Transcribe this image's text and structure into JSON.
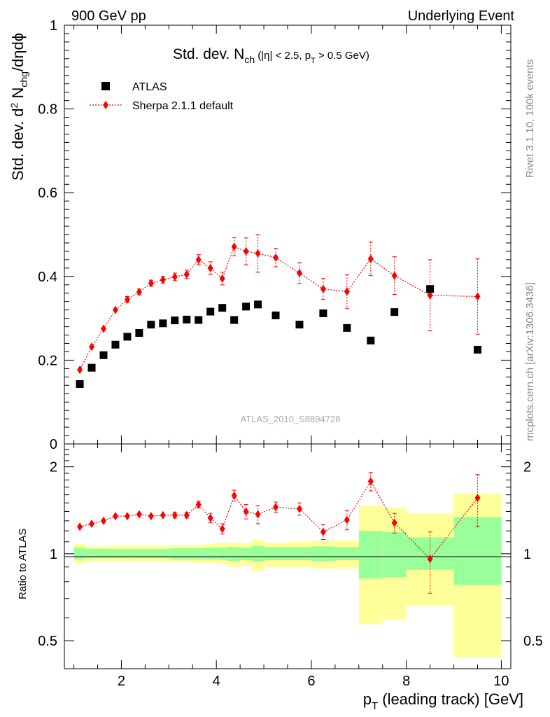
{
  "header": {
    "left_title": "900 GeV pp",
    "right_title": "Underlying Event"
  },
  "side_labels": {
    "rivet": "Rivet 3.1.10,  100k events",
    "mcplots": "mcplots.cern.ch [arXiv:1306.3436]"
  },
  "watermark": "ATLAS_2010_S8894728",
  "plot_title": {
    "main": "Std. dev. N",
    "main_sub": "ch",
    "cut_a": " (|η| < 2.5, p",
    "cut_sub": "T",
    "cut_b": " > 0.5 GeV)"
  },
  "ylabel": {
    "a": "Std. dev. d",
    "sup": "2",
    "b": " N",
    "sub": "chg",
    "c": "/dηdϕ"
  },
  "ratio_ylabel": "Ratio to ATLAS",
  "xlabel": {
    "a": "p",
    "sub": "T",
    "b": " (leading track) [GeV]"
  },
  "legend": {
    "atlas": "ATLAS",
    "sherpa": "Sherpa 2.1.1 default"
  },
  "colors": {
    "atlas": "#000000",
    "sherpa": "#ff0000",
    "band_inner": "#99ff99",
    "band_outer": "#ffff99"
  },
  "chart_data": [
    {
      "type": "scatter",
      "name": "main",
      "xlim": [
        0.8,
        10.2
      ],
      "ylim": [
        0,
        1.0
      ],
      "x_ticks": [
        2,
        4,
        6,
        8,
        10
      ],
      "y_ticks": [
        0.2,
        0.4,
        0.6,
        0.8,
        1
      ],
      "y_tick_labels": [
        "0.2",
        "0.4",
        "0.6",
        "0.8",
        "1"
      ],
      "series": [
        {
          "name": "ATLAS",
          "marker": "square",
          "x": [
            1.125,
            1.375,
            1.625,
            1.875,
            2.125,
            2.375,
            2.625,
            2.875,
            3.125,
            3.375,
            3.625,
            3.875,
            4.125,
            4.375,
            4.625,
            4.875,
            5.25,
            5.75,
            6.25,
            6.75,
            7.25,
            7.75,
            8.5,
            9.5
          ],
          "y": [
            0.143,
            0.182,
            0.212,
            0.237,
            0.256,
            0.265,
            0.285,
            0.288,
            0.295,
            0.297,
            0.296,
            0.316,
            0.325,
            0.296,
            0.328,
            0.333,
            0.307,
            0.285,
            0.312,
            0.277,
            0.247,
            0.315,
            0.37,
            0.225
          ]
        },
        {
          "name": "Sherpa 2.1.1 default",
          "marker": "diamond",
          "x": [
            1.125,
            1.375,
            1.625,
            1.875,
            2.125,
            2.375,
            2.625,
            2.875,
            3.125,
            3.375,
            3.625,
            3.875,
            4.125,
            4.375,
            4.625,
            4.875,
            5.25,
            5.75,
            6.25,
            6.75,
            7.25,
            7.75,
            8.5,
            9.5
          ],
          "y": [
            0.177,
            0.232,
            0.275,
            0.32,
            0.345,
            0.363,
            0.384,
            0.392,
            0.399,
            0.405,
            0.44,
            0.42,
            0.395,
            0.471,
            0.46,
            0.455,
            0.445,
            0.408,
            0.37,
            0.364,
            0.442,
            0.402,
            0.355,
            0.352
          ],
          "err": [
            0.005,
            0.005,
            0.006,
            0.006,
            0.007,
            0.007,
            0.007,
            0.008,
            0.009,
            0.01,
            0.012,
            0.015,
            0.015,
            0.022,
            0.032,
            0.045,
            0.022,
            0.025,
            0.025,
            0.04,
            0.04,
            0.045,
            0.085,
            0.09
          ]
        }
      ]
    },
    {
      "type": "scatter",
      "name": "ratio",
      "xlim": [
        0.8,
        10.2
      ],
      "ylim": [
        0.4,
        2.4
      ],
      "x_ticks": [
        2,
        4,
        6,
        8,
        10
      ],
      "x_tick_labels": [
        "2",
        "4",
        "6",
        "8",
        "10"
      ],
      "y_ticks": [
        0.5,
        1,
        2
      ],
      "y_tick_labels": [
        "0.5",
        "1",
        "2"
      ],
      "bins": [
        [
          1.0,
          1.25
        ],
        [
          1.25,
          1.5
        ],
        [
          1.5,
          1.75
        ],
        [
          1.75,
          2.0
        ],
        [
          2.0,
          2.25
        ],
        [
          2.25,
          2.5
        ],
        [
          2.5,
          2.75
        ],
        [
          2.75,
          3.0
        ],
        [
          3.0,
          3.25
        ],
        [
          3.25,
          3.5
        ],
        [
          3.5,
          3.75
        ],
        [
          3.75,
          4.0
        ],
        [
          4.0,
          4.25
        ],
        [
          4.25,
          4.5
        ],
        [
          4.5,
          4.75
        ],
        [
          4.75,
          5.0
        ],
        [
          5.0,
          5.5
        ],
        [
          5.5,
          6.0
        ],
        [
          6.0,
          6.5
        ],
        [
          6.5,
          7.0
        ],
        [
          7.0,
          7.5
        ],
        [
          7.5,
          8.0
        ],
        [
          8.0,
          9.0
        ],
        [
          9.0,
          10.0
        ]
      ],
      "band_inner": [
        [
          0.96,
          1.05
        ],
        [
          0.965,
          1.04
        ],
        [
          0.965,
          1.04
        ],
        [
          0.965,
          1.04
        ],
        [
          0.965,
          1.04
        ],
        [
          0.965,
          1.04
        ],
        [
          0.965,
          1.04
        ],
        [
          0.965,
          1.04
        ],
        [
          0.96,
          1.045
        ],
        [
          0.96,
          1.045
        ],
        [
          0.96,
          1.045
        ],
        [
          0.955,
          1.05
        ],
        [
          0.955,
          1.05
        ],
        [
          0.945,
          1.055
        ],
        [
          0.95,
          1.05
        ],
        [
          0.94,
          1.065
        ],
        [
          0.95,
          1.055
        ],
        [
          0.95,
          1.055
        ],
        [
          0.945,
          1.06
        ],
        [
          0.95,
          1.055
        ],
        [
          0.82,
          1.2
        ],
        [
          0.83,
          1.19
        ],
        [
          0.88,
          1.14
        ],
        [
          0.78,
          1.34
        ]
      ],
      "band_outer": [
        [
          0.93,
          1.08
        ],
        [
          0.94,
          1.06
        ],
        [
          0.94,
          1.06
        ],
        [
          0.94,
          1.065
        ],
        [
          0.94,
          1.065
        ],
        [
          0.94,
          1.065
        ],
        [
          0.94,
          1.065
        ],
        [
          0.94,
          1.065
        ],
        [
          0.935,
          1.07
        ],
        [
          0.935,
          1.07
        ],
        [
          0.93,
          1.075
        ],
        [
          0.93,
          1.08
        ],
        [
          0.92,
          1.09
        ],
        [
          0.9,
          1.09
        ],
        [
          0.91,
          1.09
        ],
        [
          0.87,
          1.12
        ],
        [
          0.9,
          1.09
        ],
        [
          0.9,
          1.1
        ],
        [
          0.89,
          1.11
        ],
        [
          0.89,
          1.11
        ],
        [
          0.57,
          1.47
        ],
        [
          0.59,
          1.45
        ],
        [
          0.66,
          1.38
        ],
        [
          0.44,
          1.62
        ]
      ],
      "series": [
        {
          "name": "Sherpa 2.1.1 default",
          "x": [
            1.125,
            1.375,
            1.625,
            1.875,
            2.125,
            2.375,
            2.625,
            2.875,
            3.125,
            3.375,
            3.625,
            3.875,
            4.125,
            4.375,
            4.625,
            4.875,
            5.25,
            5.75,
            6.25,
            6.75,
            7.25,
            7.75,
            8.5,
            9.5
          ],
          "y": [
            1.24,
            1.27,
            1.3,
            1.35,
            1.35,
            1.37,
            1.35,
            1.36,
            1.36,
            1.36,
            1.48,
            1.33,
            1.22,
            1.59,
            1.4,
            1.37,
            1.45,
            1.43,
            1.19,
            1.31,
            1.78,
            1.28,
            0.96,
            1.56
          ],
          "err": [
            0.02,
            0.02,
            0.02,
            0.02,
            0.02,
            0.02,
            0.02,
            0.02,
            0.03,
            0.03,
            0.04,
            0.05,
            0.05,
            0.07,
            0.08,
            0.1,
            0.06,
            0.07,
            0.07,
            0.1,
            0.13,
            0.1,
            0.23,
            0.32
          ]
        }
      ]
    }
  ]
}
